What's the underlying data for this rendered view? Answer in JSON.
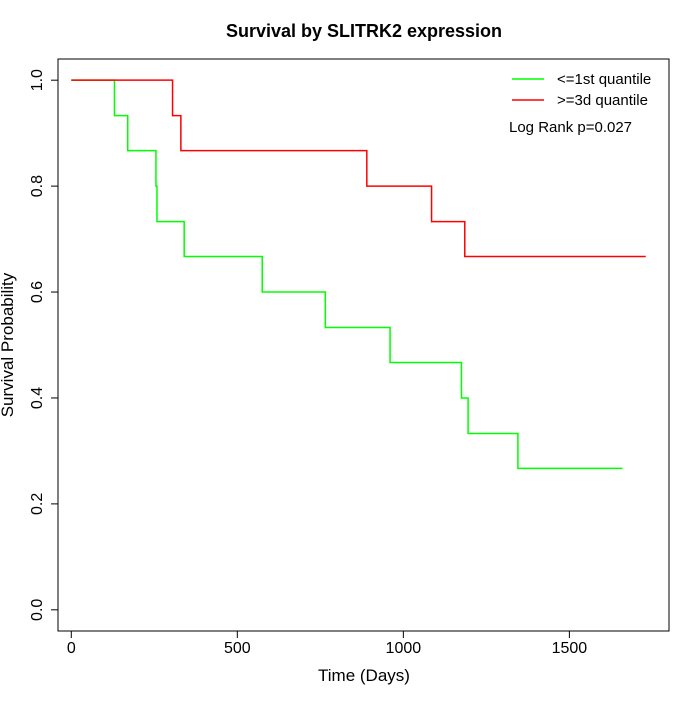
{
  "chart_data": {
    "type": "line",
    "title": "Survival by SLITRK2 expression",
    "xlabel": "Time (Days)",
    "ylabel": "Survival Probability",
    "xlim": [
      -40,
      1800
    ],
    "ylim": [
      -0.04,
      1.04
    ],
    "x_ticks": [
      0,
      500,
      1000,
      1500
    ],
    "y_ticks": [
      0.0,
      0.2,
      0.4,
      0.6,
      0.8,
      1.0
    ],
    "y_tick_labels": [
      "0.0",
      "0.2",
      "0.4",
      "0.6",
      "0.8",
      "1.0"
    ],
    "grid": false,
    "legend_position": "top-right",
    "annotation": "Log Rank p=0.027",
    "series": [
      {
        "name": "<=1st quantile",
        "color": "#00ff00",
        "step": true,
        "points": [
          [
            0,
            1.0
          ],
          [
            130,
            0.933
          ],
          [
            170,
            0.867
          ],
          [
            255,
            0.8
          ],
          [
            258,
            0.733
          ],
          [
            340,
            0.667
          ],
          [
            575,
            0.6
          ],
          [
            765,
            0.533
          ],
          [
            960,
            0.467
          ],
          [
            1175,
            0.4
          ],
          [
            1195,
            0.333
          ],
          [
            1345,
            0.267
          ],
          [
            1660,
            0.267
          ]
        ]
      },
      {
        "name": ">=3d quantile",
        "color": "#ff0000",
        "step": true,
        "points": [
          [
            0,
            1.0
          ],
          [
            305,
            0.933
          ],
          [
            330,
            0.867
          ],
          [
            890,
            0.8
          ],
          [
            1085,
            0.733
          ],
          [
            1185,
            0.667
          ],
          [
            1730,
            0.667
          ]
        ]
      }
    ]
  }
}
